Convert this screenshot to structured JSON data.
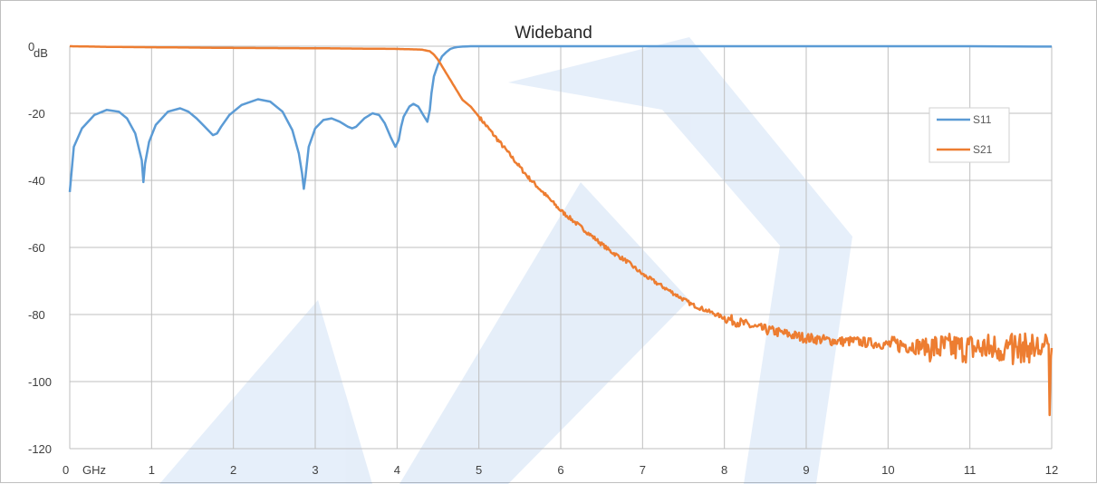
{
  "chart_data": {
    "type": "line",
    "title": "Wideband",
    "xlabel": "",
    "ylabel": "",
    "x_unit": "GHz",
    "y_unit": "dB",
    "xlim": [
      0,
      12
    ],
    "ylim": [
      -120,
      0
    ],
    "x_ticks": [
      0,
      1,
      2,
      3,
      4,
      5,
      6,
      7,
      8,
      9,
      10,
      11,
      12
    ],
    "x_tick_labels": [
      "0",
      "1",
      "2",
      "3",
      "4",
      "5",
      "6",
      "7",
      "8",
      "9",
      "10",
      "11",
      "12"
    ],
    "y_ticks": [
      0,
      -20,
      -40,
      -60,
      -80,
      -100,
      -120
    ],
    "y_tick_labels": [
      "0",
      "-20",
      "-40",
      "-60",
      "-80",
      "-100",
      "-120"
    ],
    "grid": true,
    "legend": "top-right",
    "series": [
      {
        "name": "S11",
        "color": "#5b9bd5",
        "x": [
          0,
          0.05,
          0.15,
          0.3,
          0.45,
          0.6,
          0.7,
          0.8,
          0.88,
          0.9,
          0.92,
          0.97,
          1.05,
          1.2,
          1.35,
          1.45,
          1.55,
          1.65,
          1.75,
          1.8,
          1.85,
          1.95,
          2.1,
          2.3,
          2.45,
          2.6,
          2.72,
          2.8,
          2.84,
          2.86,
          2.88,
          2.92,
          3.0,
          3.1,
          3.2,
          3.3,
          3.4,
          3.45,
          3.5,
          3.6,
          3.7,
          3.78,
          3.85,
          3.92,
          3.98,
          4.02,
          4.05,
          4.08,
          4.15,
          4.2,
          4.26,
          4.32,
          4.37,
          4.4,
          4.42,
          4.45,
          4.5,
          4.55,
          4.6,
          4.65,
          4.7,
          4.75,
          4.8,
          4.85,
          4.9,
          5.0,
          6.0,
          7.0,
          8.0,
          9.0,
          10.0,
          11.0,
          12.0
        ],
        "values": [
          -43.5,
          -30,
          -24.5,
          -20.5,
          -19,
          -19.5,
          -21.5,
          -26,
          -34,
          -40.5,
          -35,
          -28.5,
          -23.5,
          -19.5,
          -18.5,
          -19.5,
          -21.5,
          -24,
          -26.5,
          -26,
          -24,
          -20.5,
          -17.5,
          -15.8,
          -16.5,
          -19.5,
          -25,
          -32,
          -38,
          -42.5,
          -39,
          -30,
          -24.5,
          -22,
          -21.5,
          -22.5,
          -24,
          -24.5,
          -24,
          -21.5,
          -20,
          -20.5,
          -23,
          -27,
          -30,
          -28,
          -24,
          -21,
          -18,
          -17.2,
          -18,
          -20.5,
          -22.5,
          -19,
          -14,
          -9,
          -5.5,
          -3,
          -1.8,
          -0.8,
          -0.4,
          -0.2,
          -0.1,
          -0.05,
          0,
          0,
          0,
          0,
          0,
          0,
          0,
          0,
          -0.1
        ]
      },
      {
        "name": "S21",
        "color": "#ed7d31",
        "x": [
          0,
          0.5,
          1,
          2,
          3,
          4,
          4.3,
          4.4,
          4.45,
          4.5,
          4.55,
          4.6,
          4.65,
          4.7,
          4.75,
          4.8,
          4.9,
          5.0,
          5.2,
          5.4,
          5.6,
          5.8,
          6.0,
          6.2,
          6.4,
          6.6,
          6.8,
          7.0,
          7.2,
          7.4,
          7.6,
          7.8,
          8.0,
          8.2,
          8.4,
          8.6,
          8.8,
          9.0,
          9.2,
          9.4,
          9.6,
          9.8,
          10.0,
          10.2,
          10.4,
          10.6,
          10.8,
          11.0,
          11.2,
          11.4,
          11.6,
          11.8,
          12.0
        ],
        "values": [
          0,
          -0.2,
          -0.3,
          -0.5,
          -0.6,
          -0.8,
          -1,
          -1.5,
          -2.5,
          -4,
          -6,
          -8,
          -10,
          -12,
          -14,
          -16,
          -18,
          -21,
          -27,
          -33,
          -39,
          -44,
          -49,
          -53,
          -57,
          -61,
          -64,
          -68,
          -71,
          -74,
          -77,
          -79,
          -81,
          -82.5,
          -84,
          -85,
          -86,
          -87,
          -87.5,
          -88,
          -88,
          -88.5,
          -89,
          -89,
          -89.5,
          -90,
          -90,
          -90,
          -90,
          -90,
          -90,
          -90,
          -90
        ]
      }
    ]
  }
}
